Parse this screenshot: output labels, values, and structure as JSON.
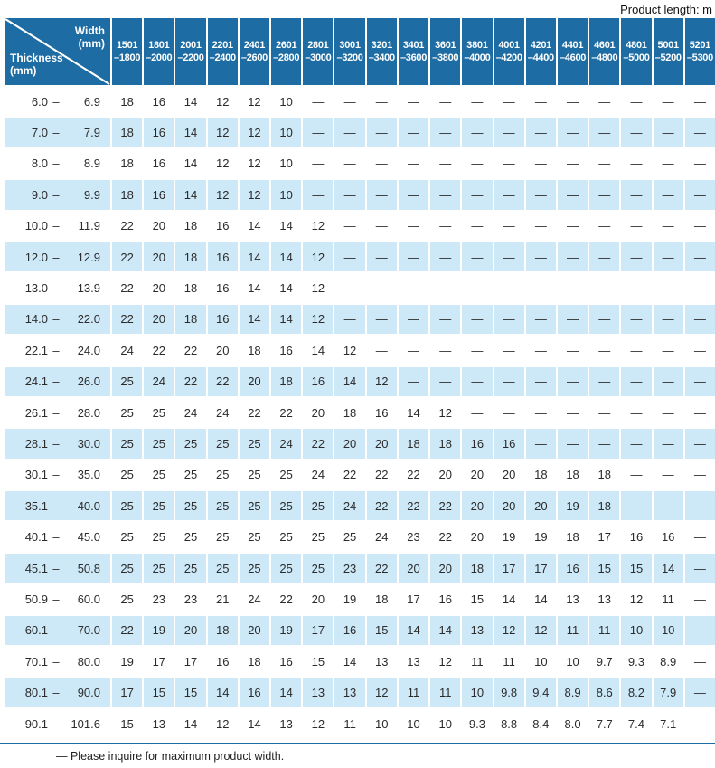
{
  "product_length_label": "Product length: m",
  "range_separator": "–",
  "corner": {
    "width_label_line1": "Width",
    "width_label_line2": "(mm)",
    "thickness_label_line1": "Thickness",
    "thickness_label_line2": "(mm)"
  },
  "width_columns": [
    {
      "from": "1501",
      "to": "–1800"
    },
    {
      "from": "1801",
      "to": "–2000"
    },
    {
      "from": "2001",
      "to": "–2200"
    },
    {
      "from": "2201",
      "to": "–2400"
    },
    {
      "from": "2401",
      "to": "–2600"
    },
    {
      "from": "2601",
      "to": "–2800"
    },
    {
      "from": "2801",
      "to": "–3000"
    },
    {
      "from": "3001",
      "to": "–3200"
    },
    {
      "from": "3201",
      "to": "–3400"
    },
    {
      "from": "3401",
      "to": "–3600"
    },
    {
      "from": "3601",
      "to": "–3800"
    },
    {
      "from": "3801",
      "to": "–4000"
    },
    {
      "from": "4001",
      "to": "–4200"
    },
    {
      "from": "4201",
      "to": "–4400"
    },
    {
      "from": "4401",
      "to": "–4600"
    },
    {
      "from": "4601",
      "to": "–4800"
    },
    {
      "from": "4801",
      "to": "–5000"
    },
    {
      "from": "5001",
      "to": "–5200"
    },
    {
      "from": "5201",
      "to": "–5300"
    }
  ],
  "rows": [
    {
      "min": "6.0",
      "max": "6.9",
      "values": [
        "18",
        "16",
        "14",
        "12",
        "12",
        "10",
        "—",
        "—",
        "—",
        "—",
        "—",
        "—",
        "—",
        "—",
        "—",
        "—",
        "—",
        "—",
        "—"
      ]
    },
    {
      "min": "7.0",
      "max": "7.9",
      "values": [
        "18",
        "16",
        "14",
        "12",
        "12",
        "10",
        "—",
        "—",
        "—",
        "—",
        "—",
        "—",
        "—",
        "—",
        "—",
        "—",
        "—",
        "—",
        "—"
      ]
    },
    {
      "min": "8.0",
      "max": "8.9",
      "values": [
        "18",
        "16",
        "14",
        "12",
        "12",
        "10",
        "—",
        "—",
        "—",
        "—",
        "—",
        "—",
        "—",
        "—",
        "—",
        "—",
        "—",
        "—",
        "—"
      ]
    },
    {
      "min": "9.0",
      "max": "9.9",
      "values": [
        "18",
        "16",
        "14",
        "12",
        "12",
        "10",
        "—",
        "—",
        "—",
        "—",
        "—",
        "—",
        "—",
        "—",
        "—",
        "—",
        "—",
        "—",
        "—"
      ]
    },
    {
      "min": "10.0",
      "max": "11.9",
      "values": [
        "22",
        "20",
        "18",
        "16",
        "14",
        "14",
        "12",
        "—",
        "—",
        "—",
        "—",
        "—",
        "—",
        "—",
        "—",
        "—",
        "—",
        "—",
        "—"
      ]
    },
    {
      "min": "12.0",
      "max": "12.9",
      "values": [
        "22",
        "20",
        "18",
        "16",
        "14",
        "14",
        "12",
        "—",
        "—",
        "—",
        "—",
        "—",
        "—",
        "—",
        "—",
        "—",
        "—",
        "—",
        "—"
      ]
    },
    {
      "min": "13.0",
      "max": "13.9",
      "values": [
        "22",
        "20",
        "18",
        "16",
        "14",
        "14",
        "12",
        "—",
        "—",
        "—",
        "—",
        "—",
        "—",
        "—",
        "—",
        "—",
        "—",
        "—",
        "—"
      ]
    },
    {
      "min": "14.0",
      "max": "22.0",
      "values": [
        "22",
        "20",
        "18",
        "16",
        "14",
        "14",
        "12",
        "—",
        "—",
        "—",
        "—",
        "—",
        "—",
        "—",
        "—",
        "—",
        "—",
        "—",
        "—"
      ]
    },
    {
      "min": "22.1",
      "max": "24.0",
      "values": [
        "24",
        "22",
        "22",
        "20",
        "18",
        "16",
        "14",
        "12",
        "—",
        "—",
        "—",
        "—",
        "—",
        "—",
        "—",
        "—",
        "—",
        "—",
        "—"
      ]
    },
    {
      "min": "24.1",
      "max": "26.0",
      "values": [
        "25",
        "24",
        "22",
        "22",
        "20",
        "18",
        "16",
        "14",
        "12",
        "—",
        "—",
        "—",
        "—",
        "—",
        "—",
        "—",
        "—",
        "—",
        "—"
      ]
    },
    {
      "min": "26.1",
      "max": "28.0",
      "values": [
        "25",
        "25",
        "24",
        "24",
        "22",
        "22",
        "20",
        "18",
        "16",
        "14",
        "12",
        "—",
        "—",
        "—",
        "—",
        "—",
        "—",
        "—",
        "—"
      ]
    },
    {
      "min": "28.1",
      "max": "30.0",
      "values": [
        "25",
        "25",
        "25",
        "25",
        "25",
        "24",
        "22",
        "20",
        "20",
        "18",
        "18",
        "16",
        "16",
        "—",
        "—",
        "—",
        "—",
        "—",
        "—"
      ]
    },
    {
      "min": "30.1",
      "max": "35.0",
      "values": [
        "25",
        "25",
        "25",
        "25",
        "25",
        "25",
        "24",
        "22",
        "22",
        "22",
        "20",
        "20",
        "20",
        "18",
        "18",
        "18",
        "—",
        "—",
        "—"
      ]
    },
    {
      "min": "35.1",
      "max": "40.0",
      "values": [
        "25",
        "25",
        "25",
        "25",
        "25",
        "25",
        "25",
        "24",
        "22",
        "22",
        "22",
        "20",
        "20",
        "20",
        "19",
        "18",
        "—",
        "—",
        "—"
      ]
    },
    {
      "min": "40.1",
      "max": "45.0",
      "values": [
        "25",
        "25",
        "25",
        "25",
        "25",
        "25",
        "25",
        "25",
        "24",
        "23",
        "22",
        "20",
        "19",
        "19",
        "18",
        "17",
        "16",
        "16",
        "—"
      ]
    },
    {
      "min": "45.1",
      "max": "50.8",
      "values": [
        "25",
        "25",
        "25",
        "25",
        "25",
        "25",
        "25",
        "23",
        "22",
        "20",
        "20",
        "18",
        "17",
        "17",
        "16",
        "15",
        "15",
        "14",
        "—"
      ]
    },
    {
      "min": "50.9",
      "max": "60.0",
      "values": [
        "25",
        "23",
        "23",
        "21",
        "24",
        "22",
        "20",
        "19",
        "18",
        "17",
        "16",
        "15",
        "14",
        "14",
        "13",
        "13",
        "12",
        "11",
        "—"
      ]
    },
    {
      "min": "60.1",
      "max": "70.0",
      "values": [
        "22",
        "19",
        "20",
        "18",
        "20",
        "19",
        "17",
        "16",
        "15",
        "14",
        "14",
        "13",
        "12",
        "12",
        "11",
        "11",
        "10",
        "10",
        "—"
      ]
    },
    {
      "min": "70.1",
      "max": "80.0",
      "values": [
        "19",
        "17",
        "17",
        "16",
        "18",
        "16",
        "15",
        "14",
        "13",
        "13",
        "12",
        "11",
        "11",
        "10",
        "10",
        "9.7",
        "9.3",
        "8.9",
        "—"
      ]
    },
    {
      "min": "80.1",
      "max": "90.0",
      "values": [
        "17",
        "15",
        "15",
        "14",
        "16",
        "14",
        "13",
        "13",
        "12",
        "11",
        "11",
        "10",
        "9.8",
        "9.4",
        "8.9",
        "8.6",
        "8.2",
        "7.9",
        "—"
      ]
    },
    {
      "min": "90.1",
      "max": "101.6",
      "values": [
        "15",
        "13",
        "14",
        "12",
        "14",
        "13",
        "12",
        "11",
        "10",
        "10",
        "10",
        "9.3",
        "8.8",
        "8.4",
        "8.0",
        "7.7",
        "7.4",
        "7.1",
        "—"
      ]
    }
  ],
  "footnote": "— Please inquire for maximum product width.",
  "colors": {
    "header_blue": "#1d6ca3",
    "row_blue": "#cde9f8",
    "text": "#2b2b2b"
  }
}
